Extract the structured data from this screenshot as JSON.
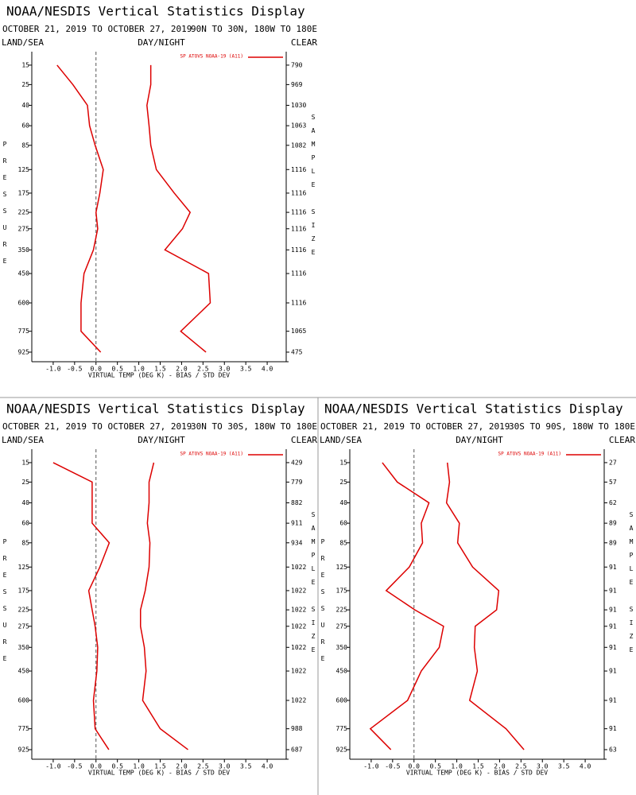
{
  "chart_data": [
    {
      "type": "line",
      "title": "NOAA/NESDIS Vertical Statistics Display",
      "date_range": "OCTOBER 21, 2019 TO OCTOBER 27, 2019",
      "region": "90N TO 30N, 180W TO 180E",
      "left_header": "LAND/SEA",
      "center_header": "DAY/NIGHT",
      "right_header": "CLEAR",
      "legend": "SP ATOVS NOAA-19 (A11)",
      "xlabel": "VIRTUAL TEMP (DEG K) - BIAS / STD DEV",
      "ylabel": "PRESSURE",
      "y2label": "SAMPLE SIZE",
      "xlim": [
        -1.5,
        4.5
      ],
      "xticks": [
        {
          "value": -1,
          "label": "-1.0"
        },
        -0.5,
        {
          "value": 0,
          "label": "0.0"
        },
        0.5,
        {
          "value": 1,
          "label": "1.0"
        },
        1.5,
        {
          "value": 2,
          "label": "2.0"
        },
        2.5,
        {
          "value": 3,
          "label": "3.0"
        },
        3.5,
        {
          "value": 4,
          "label": "4.0"
        }
      ],
      "ylim": [
        10,
        1000
      ],
      "y_scale_power": 0.3,
      "y_inverted": true,
      "yticks": [
        15,
        25,
        40,
        60,
        85,
        125,
        175,
        225,
        275,
        350,
        450,
        600,
        775,
        925
      ],
      "sample_size": [
        790,
        969,
        1030,
        1063,
        1082,
        1116,
        1116,
        1116,
        1116,
        1116,
        1116,
        1116,
        1065,
        475
      ],
      "series": [
        {
          "color": "#dd0000",
          "values": [
            -0.91,
            -0.54,
            -0.2,
            -0.15,
            -0.02,
            0.17,
            0.09,
            0.0,
            0.04,
            -0.06,
            -0.28,
            -0.35,
            -0.35,
            0.11
          ]
        },
        {
          "color": "#dd0000",
          "values": [
            1.28,
            1.28,
            1.19,
            1.24,
            1.28,
            1.41,
            1.83,
            2.2,
            2.02,
            1.61,
            2.63,
            2.67,
            1.98,
            2.57
          ]
        }
      ]
    },
    {
      "type": "line",
      "title": "NOAA/NESDIS Vertical Statistics Display",
      "date_range": "OCTOBER 21, 2019 TO OCTOBER 27, 2019",
      "region": "30N TO 30S, 180W TO 180E",
      "left_header": "LAND/SEA",
      "center_header": "DAY/NIGHT",
      "right_header": "CLEAR",
      "legend": "SP ATOVS NOAA-19 (A11)",
      "xlabel": "VIRTUAL TEMP (DEG K) - BIAS / STD DEV",
      "ylabel": "PRESSURE",
      "y2label": "SAMPLE SIZE",
      "xlim": [
        -1.5,
        4.5
      ],
      "xticks": [
        {
          "value": -1,
          "label": "-1.0"
        },
        -0.5,
        {
          "value": 0,
          "label": "0.0"
        },
        0.5,
        {
          "value": 1,
          "label": "1.0"
        },
        1.5,
        {
          "value": 2,
          "label": "2.0"
        },
        2.5,
        {
          "value": 3,
          "label": "3.0"
        },
        3.5,
        {
          "value": 4,
          "label": "4.0"
        }
      ],
      "ylim": [
        10,
        1000
      ],
      "y_scale_power": 0.3,
      "y_inverted": true,
      "yticks": [
        15,
        25,
        40,
        60,
        85,
        125,
        175,
        225,
        275,
        350,
        450,
        600,
        775,
        925
      ],
      "sample_size": [
        429,
        779,
        882,
        911,
        934,
        1022,
        1022,
        1022,
        1022,
        1022,
        1022,
        1022,
        988,
        687
      ],
      "series": [
        {
          "color": "#dd0000",
          "values": [
            -1.0,
            -0.09,
            -0.09,
            -0.09,
            0.31,
            0.09,
            -0.17,
            -0.09,
            -0.02,
            0.04,
            0.02,
            -0.06,
            -0.02,
            0.3
          ]
        },
        {
          "color": "#dd0000",
          "values": [
            1.35,
            1.24,
            1.24,
            1.2,
            1.26,
            1.24,
            1.15,
            1.04,
            1.04,
            1.13,
            1.17,
            1.09,
            1.5,
            2.15
          ]
        }
      ]
    },
    {
      "type": "line",
      "title": "NOAA/NESDIS Vertical Statistics Display",
      "date_range": "OCTOBER 21, 2019 TO OCTOBER 27, 2019",
      "region": "30S TO 90S, 180W TO 180E",
      "left_header": "LAND/SEA",
      "center_header": "DAY/NIGHT",
      "right_header": "CLEAR",
      "legend": "SP ATOVS NOAA-19 (A11)",
      "xlabel": "VIRTUAL TEMP (DEG K) - BIAS / STD DEV",
      "ylabel": "PRESSURE",
      "y2label": "SAMPLE SIZE",
      "xlim": [
        -1.5,
        4.5
      ],
      "xticks": [
        {
          "value": -1,
          "label": "-1.0"
        },
        -0.5,
        {
          "value": 0,
          "label": "0.0"
        },
        0.5,
        {
          "value": 1,
          "label": "1.0"
        },
        1.5,
        {
          "value": 2,
          "label": "2.0"
        },
        2.5,
        {
          "value": 3,
          "label": "3.0"
        },
        3.5,
        {
          "value": 4,
          "label": "4.0"
        }
      ],
      "ylim": [
        10,
        1000
      ],
      "y_scale_power": 0.3,
      "y_inverted": true,
      "yticks": [
        15,
        25,
        40,
        60,
        85,
        125,
        175,
        225,
        275,
        350,
        450,
        600,
        775,
        925
      ],
      "sample_size": [
        27,
        57,
        62,
        89,
        89,
        91,
        91,
        91,
        91,
        91,
        91,
        91,
        91,
        63
      ],
      "series": [
        {
          "color": "#dd0000",
          "values": [
            -0.74,
            -0.39,
            0.35,
            0.17,
            0.2,
            -0.11,
            -0.65,
            0.02,
            0.69,
            0.59,
            0.17,
            -0.15,
            -1.02,
            -0.54
          ]
        },
        {
          "color": "#dd0000",
          "values": [
            0.78,
            0.83,
            0.76,
            1.06,
            1.02,
            1.37,
            1.98,
            1.93,
            1.43,
            1.41,
            1.48,
            1.3,
            2.15,
            2.57
          ]
        }
      ]
    }
  ]
}
